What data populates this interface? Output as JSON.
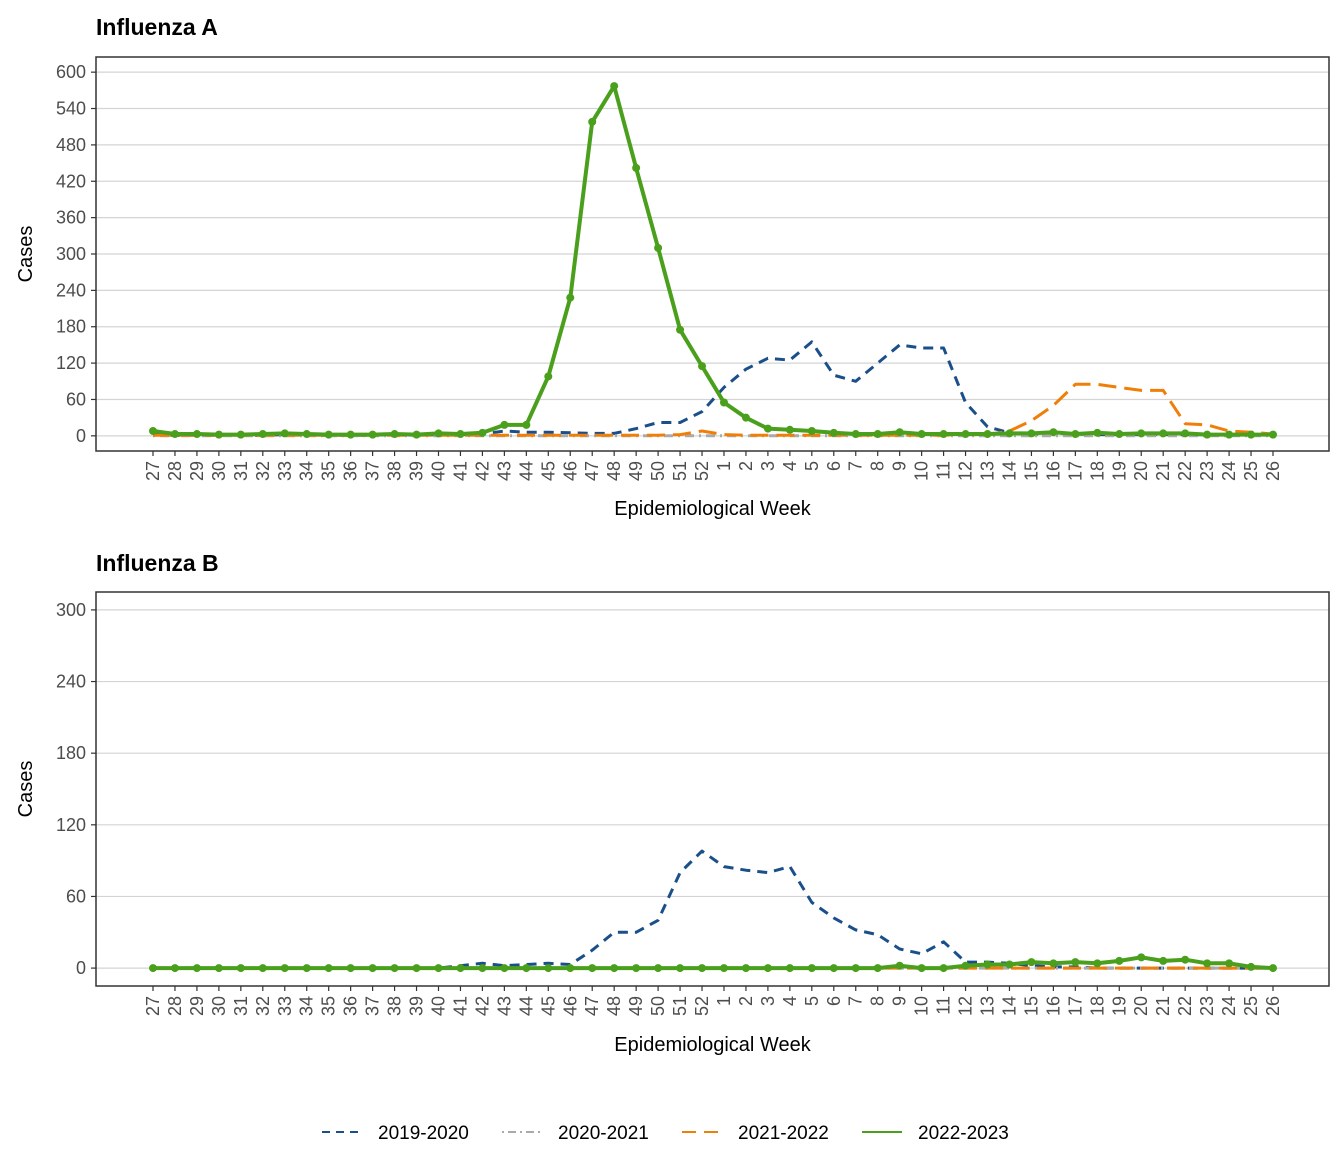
{
  "legend": {
    "position": "bottom",
    "items": [
      {
        "label": "2019-2020",
        "color": "#1b4f8a",
        "style": "dashed"
      },
      {
        "label": "2020-2021",
        "color": "#aaaaaa",
        "style": "dotdash"
      },
      {
        "label": "2021-2022",
        "color": "#f07f09",
        "style": "longdash"
      },
      {
        "label": "2022-2023",
        "color": "#4aa01c",
        "style": "solid"
      }
    ]
  },
  "chart_data": [
    {
      "type": "line",
      "title": "Influenza A",
      "xlabel": "Epidemiological Week",
      "ylabel": "Cases",
      "ylim": [
        -25,
        625
      ],
      "yticks": [
        0,
        60,
        120,
        180,
        240,
        300,
        360,
        420,
        480,
        540,
        600
      ],
      "grid": "horizontal major",
      "categories": [
        "27",
        "28",
        "29",
        "30",
        "31",
        "32",
        "33",
        "34",
        "35",
        "36",
        "37",
        "38",
        "39",
        "40",
        "41",
        "42",
        "43",
        "44",
        "45",
        "46",
        "47",
        "48",
        "49",
        "50",
        "51",
        "52",
        "1",
        "2",
        "3",
        "4",
        "5",
        "6",
        "7",
        "8",
        "9",
        "10",
        "11",
        "12",
        "13",
        "14",
        "15",
        "16",
        "17",
        "18",
        "19",
        "20",
        "21",
        "22",
        "23",
        "24",
        "25",
        "26"
      ],
      "series": [
        {
          "name": "2019-2020",
          "values": [
            2,
            1,
            1,
            1,
            1,
            1,
            2,
            1,
            1,
            1,
            1,
            2,
            1,
            2,
            2,
            3,
            8,
            6,
            6,
            5,
            4,
            4,
            12,
            22,
            22,
            40,
            80,
            110,
            128,
            125,
            155,
            100,
            90,
            120,
            150,
            145,
            145,
            55,
            15,
            5,
            2,
            4,
            3,
            2,
            2,
            2,
            2,
            2,
            2,
            2,
            2,
            2
          ]
        },
        {
          "name": "2020-2021",
          "values": [
            0,
            0,
            0,
            0,
            0,
            0,
            0,
            0,
            0,
            0,
            0,
            0,
            0,
            0,
            0,
            0,
            0,
            0,
            0,
            0,
            0,
            0,
            0,
            0,
            0,
            0,
            0,
            0,
            0,
            0,
            0,
            0,
            0,
            0,
            0,
            0,
            0,
            0,
            0,
            0,
            0,
            0,
            0,
            0,
            0,
            0,
            0,
            0,
            0,
            0,
            0,
            0
          ]
        },
        {
          "name": "2021-2022",
          "values": [
            1,
            1,
            1,
            1,
            1,
            1,
            1,
            1,
            1,
            1,
            1,
            1,
            1,
            1,
            1,
            1,
            1,
            1,
            1,
            1,
            1,
            1,
            1,
            1,
            2,
            8,
            2,
            1,
            1,
            1,
            1,
            1,
            1,
            1,
            1,
            1,
            1,
            2,
            2,
            8,
            25,
            50,
            85,
            85,
            80,
            75,
            75,
            20,
            18,
            8,
            6,
            3
          ]
        },
        {
          "name": "2022-2023",
          "values": [
            8,
            3,
            3,
            2,
            2,
            3,
            4,
            3,
            2,
            2,
            2,
            3,
            2,
            4,
            3,
            5,
            18,
            18,
            98,
            228,
            518,
            577,
            442,
            310,
            175,
            115,
            55,
            30,
            12,
            10,
            8,
            5,
            3,
            3,
            6,
            3,
            3,
            3,
            3,
            4,
            4,
            6,
            3,
            5,
            3,
            4,
            4,
            4,
            2,
            2,
            2,
            2
          ],
          "markers": true
        }
      ]
    },
    {
      "type": "line",
      "title": "Influenza B",
      "xlabel": "Epidemiological Week",
      "ylabel": "Cases",
      "ylim": [
        -15,
        315
      ],
      "yticks": [
        0,
        60,
        120,
        180,
        240,
        300
      ],
      "grid": "horizontal major",
      "categories": [
        "27",
        "28",
        "29",
        "30",
        "31",
        "32",
        "33",
        "34",
        "35",
        "36",
        "37",
        "38",
        "39",
        "40",
        "41",
        "42",
        "43",
        "44",
        "45",
        "46",
        "47",
        "48",
        "49",
        "50",
        "51",
        "52",
        "1",
        "2",
        "3",
        "4",
        "5",
        "6",
        "7",
        "8",
        "9",
        "10",
        "11",
        "12",
        "13",
        "14",
        "15",
        "16",
        "17",
        "18",
        "19",
        "20",
        "21",
        "22",
        "23",
        "24",
        "25",
        "26"
      ],
      "series": [
        {
          "name": "2019-2020",
          "values": [
            0,
            0,
            0,
            0,
            0,
            0,
            0,
            0,
            0,
            0,
            0,
            0,
            0,
            0,
            2,
            4,
            2,
            3,
            4,
            3,
            15,
            30,
            30,
            40,
            80,
            98,
            85,
            82,
            80,
            85,
            55,
            42,
            32,
            28,
            16,
            12,
            22,
            5,
            5,
            4,
            2,
            1,
            1,
            0,
            0,
            0,
            0,
            0,
            0,
            0,
            0,
            0
          ]
        },
        {
          "name": "2020-2021",
          "values": [
            0,
            0,
            0,
            0,
            0,
            0,
            0,
            0,
            0,
            0,
            0,
            0,
            0,
            0,
            0,
            0,
            0,
            0,
            0,
            0,
            0,
            0,
            0,
            0,
            0,
            0,
            0,
            0,
            0,
            0,
            0,
            0,
            0,
            0,
            0,
            0,
            0,
            0,
            0,
            0,
            0,
            0,
            0,
            0,
            0,
            0,
            0,
            0,
            0,
            0,
            0,
            0
          ]
        },
        {
          "name": "2021-2022",
          "values": [
            0,
            0,
            0,
            0,
            0,
            0,
            0,
            0,
            0,
            0,
            0,
            0,
            0,
            0,
            0,
            0,
            0,
            0,
            0,
            0,
            0,
            0,
            0,
            0,
            0,
            0,
            0,
            0,
            0,
            0,
            0,
            0,
            0,
            0,
            0,
            0,
            0,
            0,
            0,
            0,
            0,
            0,
            0,
            0,
            0,
            0,
            0,
            0,
            0,
            0,
            0,
            0
          ]
        },
        {
          "name": "2022-2023",
          "values": [
            0,
            0,
            0,
            0,
            0,
            0,
            0,
            0,
            0,
            0,
            0,
            0,
            0,
            0,
            0,
            0,
            0,
            0,
            0,
            0,
            0,
            0,
            0,
            0,
            0,
            0,
            0,
            0,
            0,
            0,
            0,
            0,
            0,
            0,
            2,
            0,
            0,
            2,
            3,
            3,
            5,
            4,
            5,
            4,
            6,
            9,
            6,
            7,
            4,
            4,
            1,
            0
          ],
          "markers": true
        }
      ]
    }
  ]
}
